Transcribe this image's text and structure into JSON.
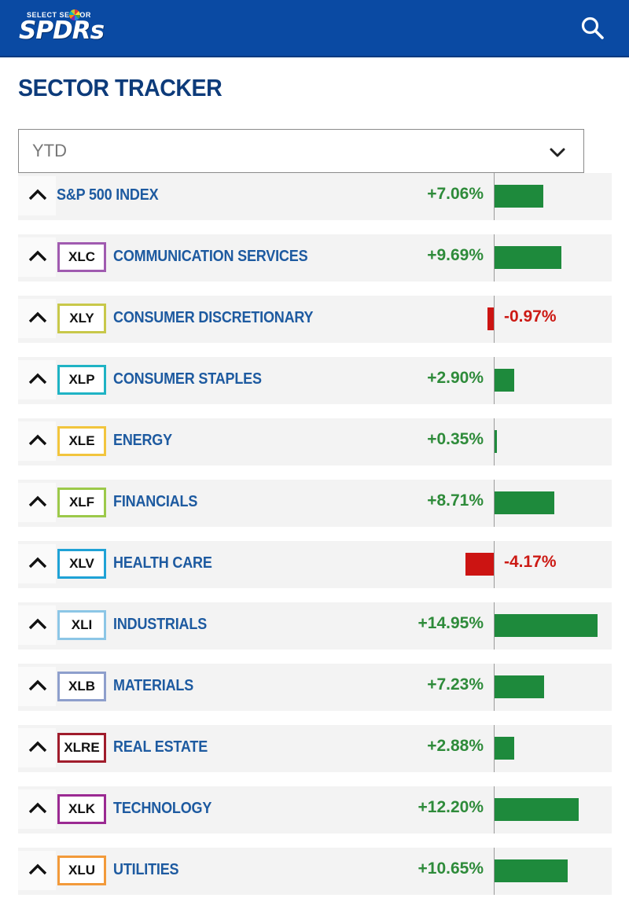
{
  "header": {
    "logo_top": "SELECT SECTOR",
    "logo_main": "SPDRs",
    "search_icon": "search-icon"
  },
  "page": {
    "title": "SECTOR TRACKER"
  },
  "period_select": {
    "selected": "YTD",
    "icon": "chevron-down-icon"
  },
  "colors": {
    "brand_blue": "#0a4aa3",
    "positive": "#2e8b3a",
    "negative": "#cc1a14"
  },
  "rows": [
    {
      "ticker": "",
      "name": "S&P 500 INDEX",
      "change": "+7.06%",
      "value": 7.06,
      "color": ""
    },
    {
      "ticker": "XLC",
      "name": "COMMUNICATION SERVICES",
      "change": "+9.69%",
      "value": 9.69,
      "color": "#a05bb0"
    },
    {
      "ticker": "XLY",
      "name": "CONSUMER DISCRETIONARY",
      "change": "-0.97%",
      "value": -0.97,
      "color": "#c8c84a"
    },
    {
      "ticker": "XLP",
      "name": "CONSUMER STAPLES",
      "change": "+2.90%",
      "value": 2.9,
      "color": "#1fb3c4"
    },
    {
      "ticker": "XLE",
      "name": "ENERGY",
      "change": "+0.35%",
      "value": 0.35,
      "color": "#f2c53d"
    },
    {
      "ticker": "XLF",
      "name": "FINANCIALS",
      "change": "+8.71%",
      "value": 8.71,
      "color": "#9cc94a"
    },
    {
      "ticker": "XLV",
      "name": "HEALTH CARE",
      "change": "-4.17%",
      "value": -4.17,
      "color": "#1fa2d6"
    },
    {
      "ticker": "XLI",
      "name": "INDUSTRIALS",
      "change": "+14.95%",
      "value": 14.95,
      "color": "#8cc6e6"
    },
    {
      "ticker": "XLB",
      "name": "MATERIALS",
      "change": "+7.23%",
      "value": 7.23,
      "color": "#8e9fcc"
    },
    {
      "ticker": "XLRE",
      "name": "REAL ESTATE",
      "change": "+2.88%",
      "value": 2.88,
      "color": "#a01c2c"
    },
    {
      "ticker": "XLK",
      "name": "TECHNOLOGY",
      "change": "+12.20%",
      "value": 12.2,
      "color": "#9b2a92"
    },
    {
      "ticker": "XLU",
      "name": "UTILITIES",
      "change": "+10.65%",
      "value": 10.65,
      "color": "#f29a3a"
    }
  ]
}
